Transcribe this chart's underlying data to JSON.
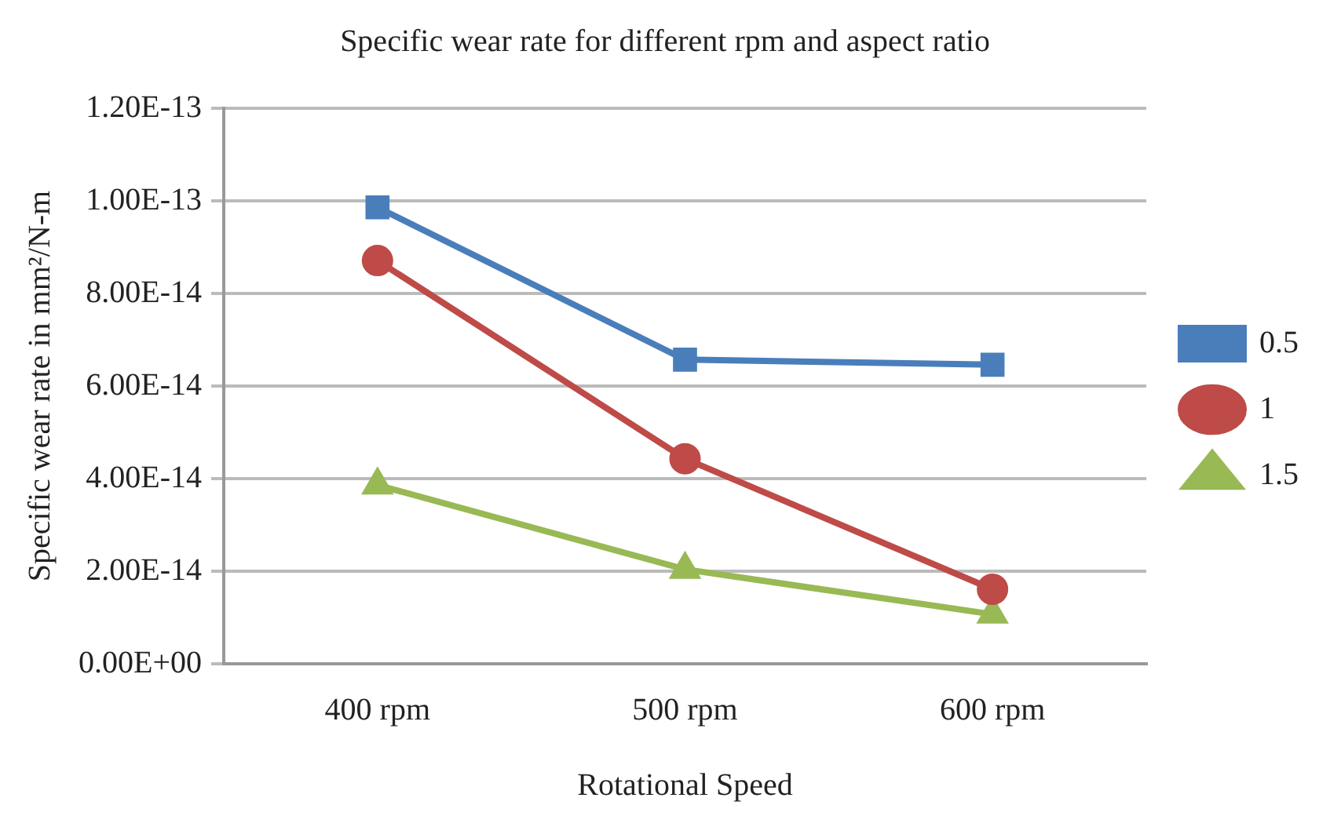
{
  "chart_data": {
    "type": "line",
    "title": "Specific wear rate for different rpm and aspect ratio",
    "xlabel": "Rotational Speed",
    "ylabel": "Specific wear rate in mm²/N-m",
    "categories": [
      "400 rpm",
      "500 rpm",
      "600 rpm"
    ],
    "series": [
      {
        "name": "0.5",
        "color": "#4a7ebb",
        "marker": "square",
        "values": [
          9.86e-14,
          6.57e-14,
          6.46e-14
        ]
      },
      {
        "name": "1",
        "color": "#be4b48",
        "marker": "circle",
        "values": [
          8.71e-14,
          4.43e-14,
          1.61e-14
        ]
      },
      {
        "name": "1.5",
        "color": "#98b954",
        "marker": "triangle",
        "values": [
          3.86e-14,
          2.04e-14,
          1.07e-14
        ]
      }
    ],
    "ylim": [
      0,
      1.2e-13
    ],
    "yticks": [
      {
        "value": 0,
        "label": "0.00E+00"
      },
      {
        "value": 2e-14,
        "label": "2.00E-14"
      },
      {
        "value": 4e-14,
        "label": "4.00E-14"
      },
      {
        "value": 6e-14,
        "label": "6.00E-14"
      },
      {
        "value": 8e-14,
        "label": "8.00E-14"
      },
      {
        "value": 1e-13,
        "label": "1.00E-13"
      },
      {
        "value": 1.2e-13,
        "label": "1.20E-13"
      }
    ],
    "grid": "y",
    "legend": "right",
    "line_style": "solid"
  }
}
